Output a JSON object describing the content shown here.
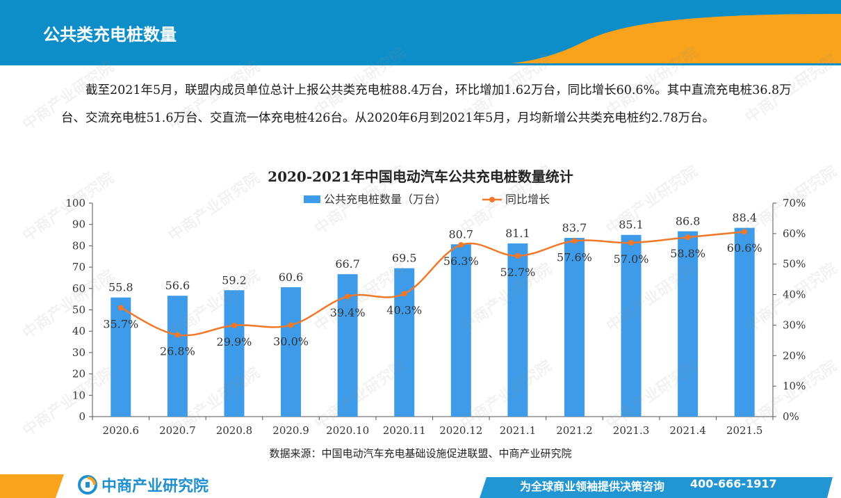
{
  "slide": {
    "title": "公共类充电桩数量",
    "paragraph": "截至2021年5月，联盟内成员单位总计上报公共类充电桩88.4万台，环比增加1.62万台，同比增长60.6%。其中直流充电桩36.8万台、交流充电桩51.6万台、交直流一体充电桩426台。从2020年6月到2021年5月，月均新增公共类充电桩约2.78万台。"
  },
  "chart_data": {
    "type": "bar",
    "title": "2020-2021年中国电动汽车公共充电桩数量统计",
    "categories": [
      "2020.6",
      "2020.7",
      "2020.8",
      "2020.9",
      "2020.10",
      "2020.11",
      "2020.12",
      "2021.1",
      "2021.2",
      "2021.3",
      "2021.4",
      "2021.5"
    ],
    "series": [
      {
        "name": "公共充电桩数量（万台）",
        "type": "bar",
        "axis": "left",
        "color": "#3d9be9",
        "values": [
          55.8,
          56.6,
          59.2,
          60.6,
          66.7,
          69.5,
          80.7,
          81.1,
          83.7,
          85.1,
          86.8,
          88.4
        ],
        "labels": [
          "55.8",
          "56.6",
          "59.2",
          "60.6",
          "66.7",
          "69.5",
          "80.7",
          "81.1",
          "83.7",
          "85.1",
          "86.8",
          "88.4"
        ]
      },
      {
        "name": "同比增长",
        "type": "line",
        "axis": "right",
        "color": "#f07828",
        "values": [
          35.7,
          26.8,
          29.9,
          30.0,
          39.4,
          40.3,
          56.3,
          52.7,
          57.6,
          57.0,
          58.8,
          60.6
        ],
        "labels": [
          "35.7%",
          "26.8%",
          "29.9%",
          "30.0%",
          "39.4%",
          "40.3%",
          "56.3%",
          "52.7%",
          "57.6%",
          "57.0%",
          "58.8%",
          "60.6%"
        ]
      }
    ],
    "y_left": {
      "min": 0,
      "max": 100,
      "step": 10,
      "ticks": [
        "0",
        "10",
        "20",
        "30",
        "40",
        "50",
        "60",
        "70",
        "80",
        "90",
        "100"
      ]
    },
    "y_right": {
      "min": 0,
      "max": 70,
      "step": 10,
      "ticks": [
        "0%",
        "10%",
        "20%",
        "30%",
        "40%",
        "50%",
        "60%",
        "70%"
      ]
    },
    "legend_position": "top-center",
    "grid": false
  },
  "source": "数据来源：中国电动汽车充电基础设施促进联盟、中商产业研究院",
  "footer": {
    "logo_text": "中商产业研究院",
    "slogan": "为全球商业领袖提供决策咨询",
    "phone": "400-666-1917"
  },
  "watermark": {
    "text": "中商产业研究院"
  },
  "colors": {
    "header_blue": "#0e8ec9",
    "header_orange": "#f9a21b",
    "footer_blue": "#2196d3"
  }
}
